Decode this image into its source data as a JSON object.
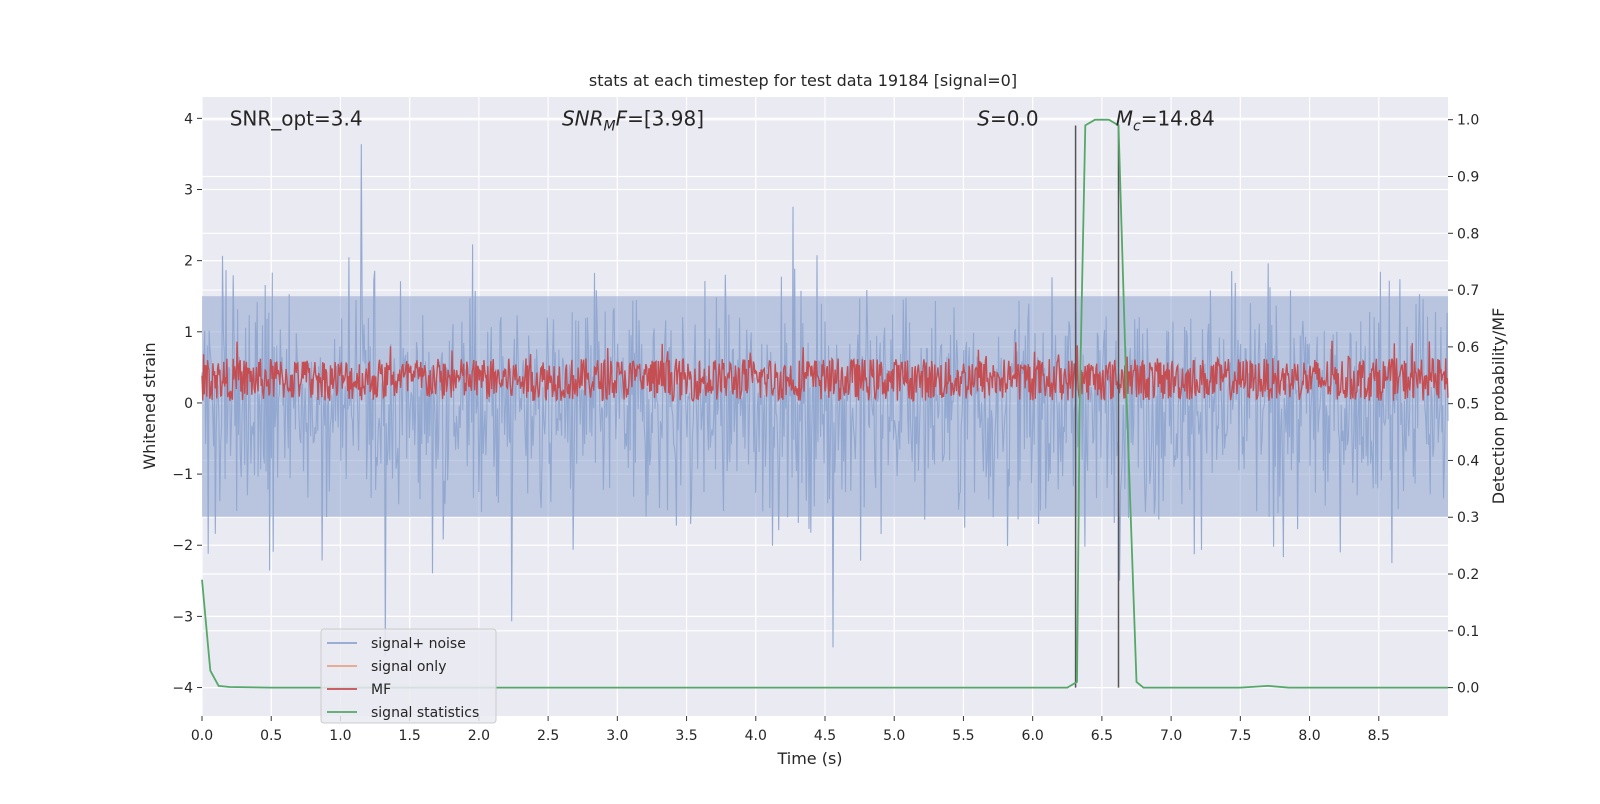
{
  "chart_data": {
    "type": "line",
    "title": "stats at each timestep for test data 19184 [signal=0]",
    "xlabel": "Time (s)",
    "ylabel": "Whitened strain",
    "y2label": "Detection probability/MF",
    "xlim": [
      0.0,
      9.0
    ],
    "ylim": [
      -4.4,
      4.3
    ],
    "y2lim": [
      -0.05,
      1.04
    ],
    "x_ticks": [
      "0.0",
      "0.5",
      "1.0",
      "1.5",
      "2.0",
      "2.5",
      "3.0",
      "3.5",
      "4.0",
      "4.5",
      "5.0",
      "5.5",
      "6.0",
      "6.5",
      "7.0",
      "7.5",
      "8.0",
      "8.5"
    ],
    "y_ticks": [
      "4",
      "3",
      "2",
      "1",
      "0",
      "−1",
      "−2",
      "−3",
      "−4"
    ],
    "y2_ticks": [
      "1.0",
      "0.9",
      "0.8",
      "0.7",
      "0.6",
      "0.5",
      "0.4",
      "0.3",
      "0.2",
      "0.1",
      "0.0"
    ],
    "grid": true,
    "legend_position": "lower-left",
    "annotations": [
      {
        "text": "SNR_opt=3.4",
        "x": 0.2
      },
      {
        "math_main": "SNR",
        "math_sub": "M",
        "math_rest": "F=[3.98]",
        "x": 2.6
      },
      {
        "math_main": "S",
        "math_rest": "=0.0",
        "x": 5.6
      },
      {
        "math_main": "M",
        "math_sub": "c",
        "math_rest": "=14.84",
        "x": 6.6
      }
    ],
    "series": [
      {
        "name": "signal+ noise",
        "color": "#8fa6cf",
        "style": "noise band, mostly within ±2.3, peaks to about ±4"
      },
      {
        "name": "signal only",
        "color": "#e8a389",
        "values": []
      },
      {
        "name": "MF",
        "color": "#c44e52",
        "style": "matched-filter trace between about 0.0 and 0.9 on the strain axis"
      },
      {
        "name": "signal statistics",
        "color": "#55a868",
        "x": [
          0.0,
          0.06,
          0.12,
          0.2,
          0.5,
          1.0,
          2.0,
          3.0,
          4.0,
          5.0,
          6.0,
          6.25,
          6.32,
          6.34,
          6.38,
          6.45,
          6.55,
          6.62,
          6.68,
          6.75,
          6.8,
          7.0,
          7.5,
          7.7,
          7.85,
          8.0,
          8.5,
          9.0
        ],
        "values": [
          0.19,
          0.03,
          0.003,
          0.001,
          0.0,
          0.0,
          0.0,
          0.0,
          0.0,
          0.0,
          0.0,
          0.0,
          0.01,
          0.5,
          0.99,
          1.0,
          1.0,
          0.99,
          0.5,
          0.01,
          0.0,
          0.0,
          0.0,
          0.003,
          0.0,
          0.0,
          0.0,
          0.0
        ]
      }
    ],
    "vlines": [
      6.31,
      6.62
    ]
  }
}
